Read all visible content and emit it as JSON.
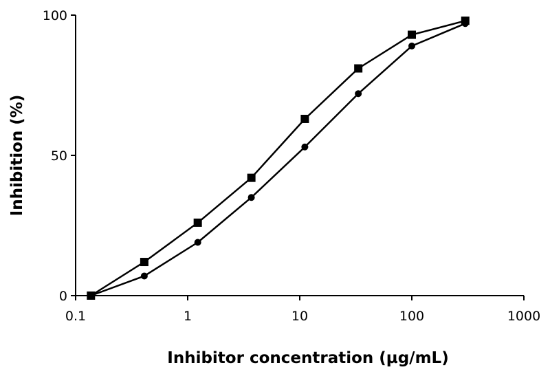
{
  "chart_data": {
    "type": "line",
    "xlabel": "Inhibitor concentration (µg/mL)",
    "ylabel": "Inhibition (%)",
    "x_scale": "log",
    "xlim": [
      0.1,
      1000
    ],
    "ylim": [
      0,
      100
    ],
    "x_ticks": [
      "0.1",
      "1",
      "10",
      "100",
      "1000"
    ],
    "y_ticks": [
      "0",
      "50",
      "100"
    ],
    "grid": false,
    "legend": "none",
    "series": [
      {
        "marker": "square",
        "color": "#000000",
        "x": [
          0.137,
          0.41,
          1.23,
          3.7,
          11.1,
          33.3,
          100,
          300
        ],
        "y": [
          0,
          12,
          26,
          42,
          63,
          81,
          93,
          98
        ]
      },
      {
        "marker": "circle",
        "color": "#000000",
        "x": [
          0.137,
          0.41,
          1.23,
          3.7,
          11.1,
          33.3,
          100,
          300
        ],
        "y": [
          0,
          7,
          19,
          35,
          53,
          72,
          89,
          97
        ]
      }
    ]
  }
}
